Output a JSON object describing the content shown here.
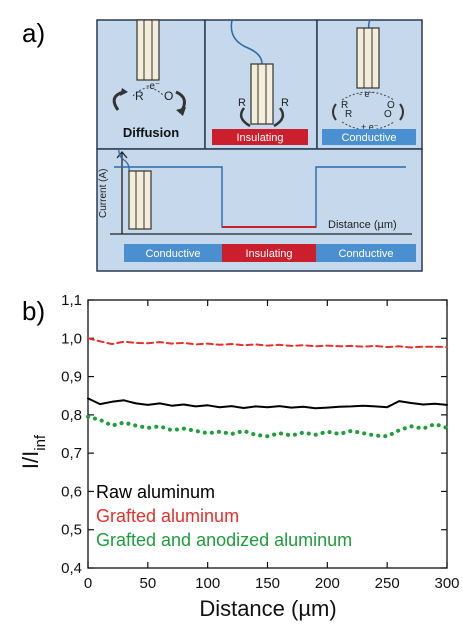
{
  "panel_a": {
    "letter": "a)",
    "cells": {
      "left_label": "Diffusion",
      "middle_label": "Insulating",
      "right_label": "Conductive"
    },
    "bottom": {
      "y_axis_label": "Current (A)",
      "x_axis_label": "Distance (µm)",
      "segments": [
        "Conductive",
        "Insulating",
        "Conductive"
      ]
    },
    "species": {
      "r": "R",
      "o": "O",
      "e_minus": "-e⁻",
      "minus_e": "- e⁻",
      "plus_e": "+ e⁻"
    },
    "colors": {
      "panel_bg": "#c5d8ec",
      "panel_border": "#2a3a52",
      "insulating": "#cc1f2e",
      "conductive": "#4a90d0",
      "wire": "#2b6aa8"
    },
    "icons": [
      "electrode-icon",
      "curved-arrow-icon",
      "electron-transfer-icon"
    ]
  },
  "panel_b": {
    "letter": "b)",
    "chart_data": {
      "type": "line",
      "xlabel": "Distance (µm)",
      "ylabel": "I/I",
      "ylabel_sub": "inf",
      "xlim": [
        0,
        300
      ],
      "ylim": [
        0.4,
        1.1
      ],
      "xticks": [
        0,
        50,
        100,
        150,
        200,
        250,
        300
      ],
      "xtick_labels": [
        "0",
        "50",
        "100",
        "150",
        "200",
        "250",
        "300"
      ],
      "yticks": [
        0.4,
        0.5,
        0.6,
        0.7,
        0.8,
        0.9,
        1.0,
        1.1
      ],
      "ytick_labels": [
        "0,4",
        "0,5",
        "0,6",
        "0,7",
        "0,8",
        "0,9",
        "1,0",
        "1,1"
      ],
      "grid": false,
      "legend_position": "bottom-left",
      "series": [
        {
          "name": "Raw aluminum",
          "color": "#000000",
          "style": "solid",
          "x": [
            0,
            10,
            20,
            30,
            40,
            50,
            60,
            70,
            80,
            90,
            100,
            110,
            120,
            130,
            140,
            150,
            160,
            170,
            180,
            190,
            200,
            210,
            220,
            230,
            240,
            250,
            260,
            270,
            280,
            290,
            300
          ],
          "y": [
            0.843,
            0.828,
            0.834,
            0.838,
            0.83,
            0.826,
            0.83,
            0.824,
            0.827,
            0.822,
            0.825,
            0.82,
            0.823,
            0.818,
            0.822,
            0.82,
            0.823,
            0.819,
            0.821,
            0.817,
            0.819,
            0.821,
            0.822,
            0.824,
            0.822,
            0.82,
            0.836,
            0.831,
            0.827,
            0.829,
            0.826
          ]
        },
        {
          "name": "Grafted aluminum",
          "color": "#e8302a",
          "style": "dashed",
          "x": [
            0,
            10,
            20,
            30,
            40,
            50,
            60,
            70,
            80,
            90,
            100,
            110,
            120,
            130,
            140,
            150,
            160,
            170,
            180,
            190,
            200,
            210,
            220,
            230,
            240,
            250,
            260,
            270,
            280,
            290,
            300
          ],
          "y": [
            1.0,
            0.992,
            0.985,
            0.991,
            0.988,
            0.987,
            0.99,
            0.986,
            0.988,
            0.984,
            0.986,
            0.983,
            0.985,
            0.982,
            0.984,
            0.981,
            0.983,
            0.98,
            0.982,
            0.979,
            0.981,
            0.979,
            0.98,
            0.978,
            0.98,
            0.977,
            0.979,
            0.976,
            0.978,
            0.978,
            0.977
          ]
        },
        {
          "name": "Grafted and anodized aluminum",
          "color": "#1e9e3c",
          "style": "dotted",
          "x": [
            0,
            10,
            20,
            30,
            40,
            50,
            60,
            70,
            80,
            90,
            100,
            110,
            120,
            130,
            140,
            150,
            160,
            170,
            180,
            190,
            200,
            210,
            220,
            230,
            240,
            250,
            260,
            270,
            280,
            290,
            300
          ],
          "y": [
            0.795,
            0.787,
            0.772,
            0.78,
            0.772,
            0.766,
            0.77,
            0.76,
            0.764,
            0.758,
            0.752,
            0.756,
            0.75,
            0.758,
            0.748,
            0.744,
            0.752,
            0.746,
            0.754,
            0.748,
            0.756,
            0.75,
            0.758,
            0.752,
            0.746,
            0.744,
            0.76,
            0.77,
            0.764,
            0.776,
            0.766
          ]
        }
      ]
    }
  }
}
